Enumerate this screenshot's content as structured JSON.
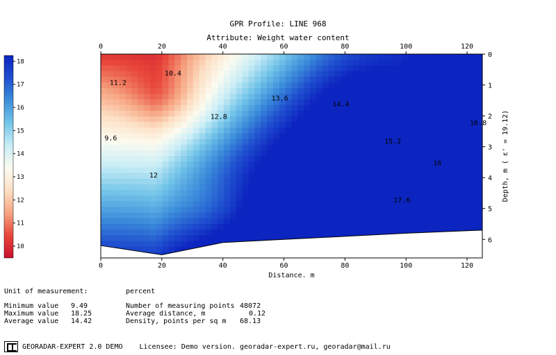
{
  "chart_data": {
    "type": "heatmap",
    "title": "GPR Profile: LINE 968",
    "subtitle": "Attribute:  Weight water content",
    "xlabel": "Distance, m",
    "ylabel": "Depth, m ( ε' = 19.12)",
    "xlim": [
      0,
      125
    ],
    "ylim": [
      0,
      6.6
    ],
    "y_inverted": true,
    "x_ticks": [
      0,
      20,
      40,
      60,
      80,
      100,
      120
    ],
    "y_ticks": [
      0,
      1,
      2,
      3,
      4,
      5,
      6
    ],
    "colorbar_ticks": [
      10,
      11,
      12,
      13,
      14,
      15,
      16,
      17,
      18
    ],
    "colorbar_range": [
      9.49,
      18.25
    ],
    "colormap": [
      "#c8102e",
      "#e8473a",
      "#f6a582",
      "#fde0c5",
      "#fbfbf0",
      "#c9edf6",
      "#74c5e9",
      "#3d8fdb",
      "#1f4fcf",
      "#0d25c0"
    ],
    "contour_labels": [
      "11.2",
      "10.4",
      "12",
      "12.8",
      "13.6",
      "14.4",
      "15.2",
      "16",
      "16.8",
      "17.6",
      "9.6"
    ],
    "bottom_boundary": [
      [
        0,
        6.2
      ],
      [
        20,
        6.5
      ],
      [
        40,
        6.1
      ],
      [
        60,
        6.0
      ],
      [
        80,
        5.9
      ],
      [
        100,
        5.8
      ],
      [
        125,
        5.7
      ]
    ]
  },
  "stats": {
    "unit_label": "Unit of measurement:",
    "unit_value": "percent",
    "min_label": "Minimum value",
    "min_value": "9.49",
    "max_label": "Maximum value",
    "max_value": "18.25",
    "avg_label": "Average value",
    "avg_value": "14.42",
    "points_label": "Number of measuring points",
    "points_value": "48072",
    "dist_label": "Average distance, m",
    "dist_value": "0.12",
    "density_label": "Density, points per sq m",
    "density_value": "68.13"
  },
  "footer": {
    "app": "GEORADAR-EXPERT 2.0 DEMO",
    "license": "Licensee: Demo version. georadar-expert.ru, georadar@mail.ru"
  }
}
